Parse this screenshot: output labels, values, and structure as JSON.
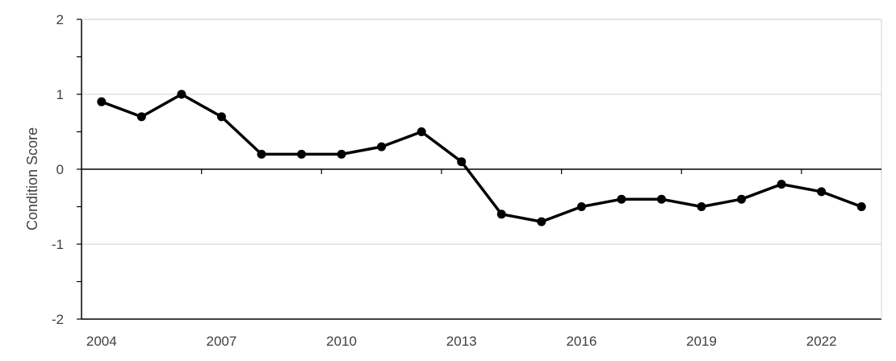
{
  "chart_data": {
    "type": "line",
    "title": "",
    "xlabel": "",
    "ylabel": "Condition Score",
    "x": [
      2004,
      2005,
      2006,
      2007,
      2008,
      2009,
      2010,
      2011,
      2012,
      2013,
      2014,
      2015,
      2016,
      2017,
      2018,
      2019,
      2020,
      2021,
      2022,
      2023
    ],
    "series": [
      {
        "values": [
          0.9,
          0.7,
          1.0,
          0.7,
          0.2,
          0.2,
          0.2,
          0.3,
          0.5,
          0.1,
          -0.6,
          -0.7,
          -0.5,
          -0.4,
          -0.4,
          -0.5,
          -0.4,
          -0.2,
          -0.3,
          -0.5
        ]
      }
    ],
    "ylim": [
      -2,
      2
    ],
    "yticks": [
      "-2",
      "-1",
      "0",
      "1",
      "2"
    ],
    "xtick_labels": [
      "2004",
      "2007",
      "2010",
      "2013",
      "2016",
      "2019",
      "2022"
    ],
    "grid": true,
    "legend": "none",
    "line_color": "#000000",
    "grid_color": "#d9d9d9"
  }
}
